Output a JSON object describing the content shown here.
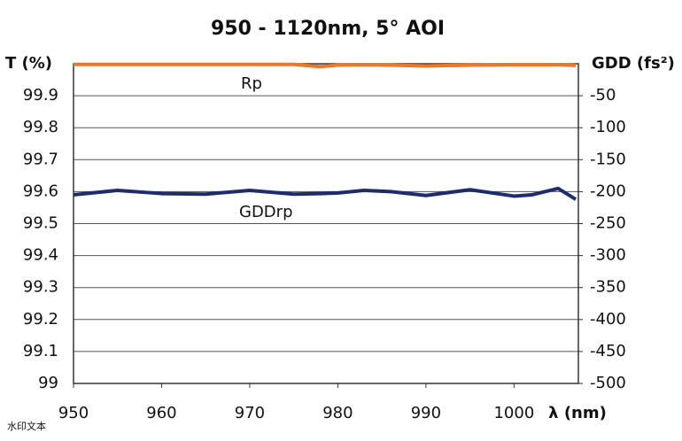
{
  "chart_data": {
    "type": "line",
    "title": "950 - 1120nm, 5° AOI",
    "ylabel": "T (%)",
    "y2label": "GDD (fs²)",
    "xlabel": "λ (nm)",
    "x": [
      950,
      955,
      960,
      965,
      970,
      975,
      978,
      980,
      983,
      986,
      990,
      995,
      1000,
      1002,
      1005,
      1007
    ],
    "series": [
      {
        "name": "Rp",
        "color": "#e8792a",
        "axis": "y",
        "values": [
          99.998,
          99.998,
          99.998,
          99.998,
          99.998,
          99.998,
          99.991,
          99.996,
          99.997,
          99.996,
          99.993,
          99.996,
          99.997,
          99.997,
          99.997,
          99.995
        ]
      },
      {
        "name": "GDDrp",
        "color": "#1e2c6b",
        "axis": "y2",
        "values": [
          -205,
          -198,
          -203,
          -204,
          -198,
          -204,
          -203,
          -202,
          -198,
          -200,
          -206,
          -197,
          -207,
          -205,
          -195,
          -212
        ]
      }
    ],
    "xlim": [
      950,
      1007.3
    ],
    "xticks": [
      950,
      960,
      970,
      980,
      990,
      1000
    ],
    "ylim": [
      99,
      100
    ],
    "yticks": [
      99,
      99.1,
      99.2,
      99.3,
      99.4,
      99.5,
      99.6,
      99.7,
      99.8,
      99.9
    ],
    "y2lim": [
      -500,
      0
    ],
    "y2ticks": [
      -500,
      -450,
      -400,
      -350,
      -300,
      -250,
      -200,
      -150,
      -100,
      -50
    ],
    "grid": true,
    "watermark": "水印文本"
  }
}
